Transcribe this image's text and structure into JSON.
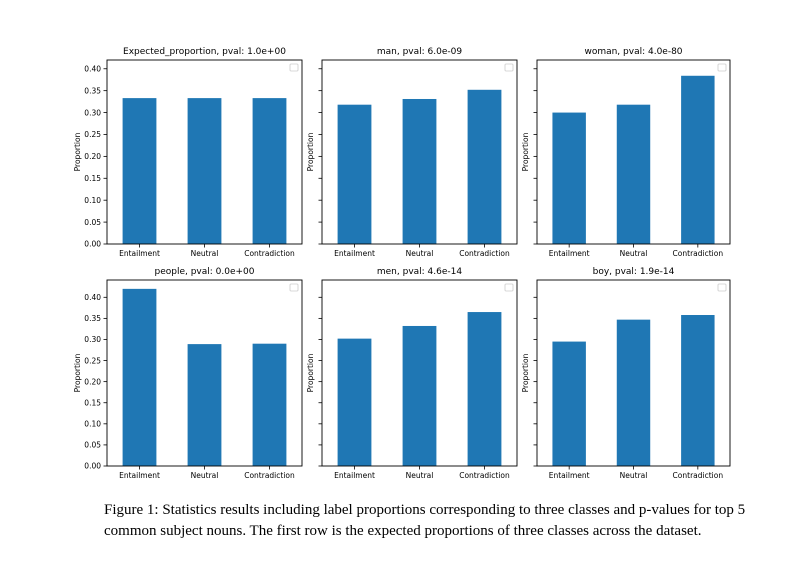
{
  "chart_data": [
    {
      "type": "bar",
      "title": "Expected_proportion, pval: 1.0e+00",
      "categories": [
        "Entailment",
        "Neutral",
        "Contradiction"
      ],
      "values": [
        0.333,
        0.333,
        0.333
      ],
      "ylabel": "Proportion",
      "ylim": [
        0,
        0.42
      ],
      "yticks": [
        "0.00",
        "0.05",
        "0.10",
        "0.15",
        "0.20",
        "0.25",
        "0.30",
        "0.35",
        "0.40"
      ],
      "color": "#1f77b4",
      "grid": false,
      "legend": "top-right"
    },
    {
      "type": "bar",
      "title": "man, pval: 6.0e-09",
      "categories": [
        "Entailment",
        "Neutral",
        "Contradiction"
      ],
      "values": [
        0.318,
        0.331,
        0.352
      ],
      "ylabel": "Proportion",
      "ylim": [
        0,
        0.42
      ],
      "color": "#1f77b4",
      "grid": false,
      "legend": "top-right"
    },
    {
      "type": "bar",
      "title": "woman, pval: 4.0e-80",
      "categories": [
        "Entailment",
        "Neutral",
        "Contradiction"
      ],
      "values": [
        0.3,
        0.318,
        0.384
      ],
      "ylabel": "Proportion",
      "ylim": [
        0,
        0.42
      ],
      "color": "#1f77b4",
      "grid": false,
      "legend": "top-right"
    },
    {
      "type": "bar",
      "title": "people, pval: 0.0e+00",
      "categories": [
        "Entailment",
        "Neutral",
        "Contradiction"
      ],
      "values": [
        0.42,
        0.289,
        0.29
      ],
      "ylabel": "Proportion",
      "ylim": [
        0,
        0.441
      ],
      "yticks": [
        "0.00",
        "0.05",
        "0.10",
        "0.15",
        "0.20",
        "0.25",
        "0.30",
        "0.35",
        "0.40"
      ],
      "color": "#1f77b4",
      "grid": false,
      "legend": "top-right"
    },
    {
      "type": "bar",
      "title": "men, pval: 4.6e-14",
      "categories": [
        "Entailment",
        "Neutral",
        "Contradiction"
      ],
      "values": [
        0.302,
        0.332,
        0.365
      ],
      "ylabel": "Proportion",
      "ylim": [
        0,
        0.441
      ],
      "color": "#1f77b4",
      "grid": false,
      "legend": "top-right"
    },
    {
      "type": "bar",
      "title": "boy, pval: 1.9e-14",
      "categories": [
        "Entailment",
        "Neutral",
        "Contradiction"
      ],
      "values": [
        0.295,
        0.347,
        0.358
      ],
      "ylabel": "Proportion",
      "ylim": [
        0,
        0.441
      ],
      "color": "#1f77b4",
      "grid": false,
      "legend": "top-right"
    }
  ],
  "caption": "Figure 1: Statistics results including label proportions corresponding to three classes and p-values for top 5 common subject nouns. The first row is the expected proportions of three classes across the dataset."
}
